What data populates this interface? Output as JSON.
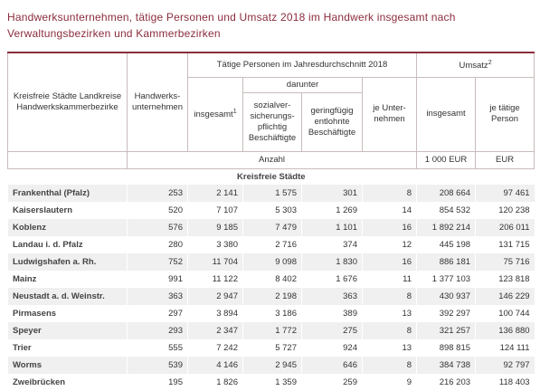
{
  "header": {
    "title": "Handwerksunternehmen, tätige Personen und Umsatz 2018 im Handwerk insgesamt nach Verwaltungsbezirken und Kammerbezirken"
  },
  "table": {
    "head": {
      "region": "Kreisfreie Städte Landkreise Handwerkskammerbezirke",
      "enterprises": "Handwerks-unternehmen",
      "persons": "Tätige Personen im Jahresdurchschnitt 2018",
      "turnover": "Umsatz",
      "turnover_note": "2",
      "persons_total": "insgesamt",
      "persons_total_note": "1",
      "thereof": "darunter",
      "social": "sozialver-sicherungs-pflichtig Beschäftigte",
      "marginal": "geringfügig entlohnte Beschäftigte",
      "per_enterprise": "je Unter-nehmen",
      "turnover_total": "insgesamt",
      "per_person": "je tätige Person"
    },
    "units": [
      "Anzahl",
      "1 000 EUR",
      "EUR"
    ],
    "section": "Kreisfreie Städte",
    "rows": [
      [
        "Frankenthal (Pfalz)",
        "253",
        "2 141",
        "1 575",
        "301",
        "8",
        "208 664",
        "97 461"
      ],
      [
        "Kaiserslautern",
        "520",
        "7 107",
        "5 303",
        "1 269",
        "14",
        "854 532",
        "120 238"
      ],
      [
        "Koblenz",
        "576",
        "9 185",
        "7 479",
        "1 101",
        "16",
        "1 892 214",
        "206 011"
      ],
      [
        "Landau i. d. Pfalz",
        "280",
        "3 380",
        "2 716",
        "374",
        "12",
        "445 198",
        "131 715"
      ],
      [
        "Ludwigshafen a. Rh.",
        "752",
        "11 704",
        "9 098",
        "1 830",
        "16",
        "886 181",
        "75 716"
      ],
      [
        "Mainz",
        "991",
        "11 122",
        "8 402",
        "1 676",
        "11",
        "1 377 103",
        "123 818"
      ],
      [
        "Neustadt a. d. Weinstr.",
        "363",
        "2 947",
        "2 198",
        "363",
        "8",
        "430 937",
        "146 229"
      ],
      [
        "Pirmasens",
        "297",
        "3 894",
        "3 186",
        "389",
        "13",
        "392 297",
        "100 744"
      ],
      [
        "Speyer",
        "293",
        "2 347",
        "1 772",
        "275",
        "8",
        "321 257",
        "136 880"
      ],
      [
        "Trier",
        "555",
        "7 242",
        "5 727",
        "924",
        "13",
        "898 815",
        "124 111"
      ],
      [
        "Worms",
        "539",
        "4 146",
        "2 945",
        "646",
        "8",
        "384 738",
        "92 797"
      ],
      [
        "Zweibrücken",
        "195",
        "1 826",
        "1 359",
        "259",
        "9",
        "216 203",
        "118 403"
      ]
    ]
  }
}
